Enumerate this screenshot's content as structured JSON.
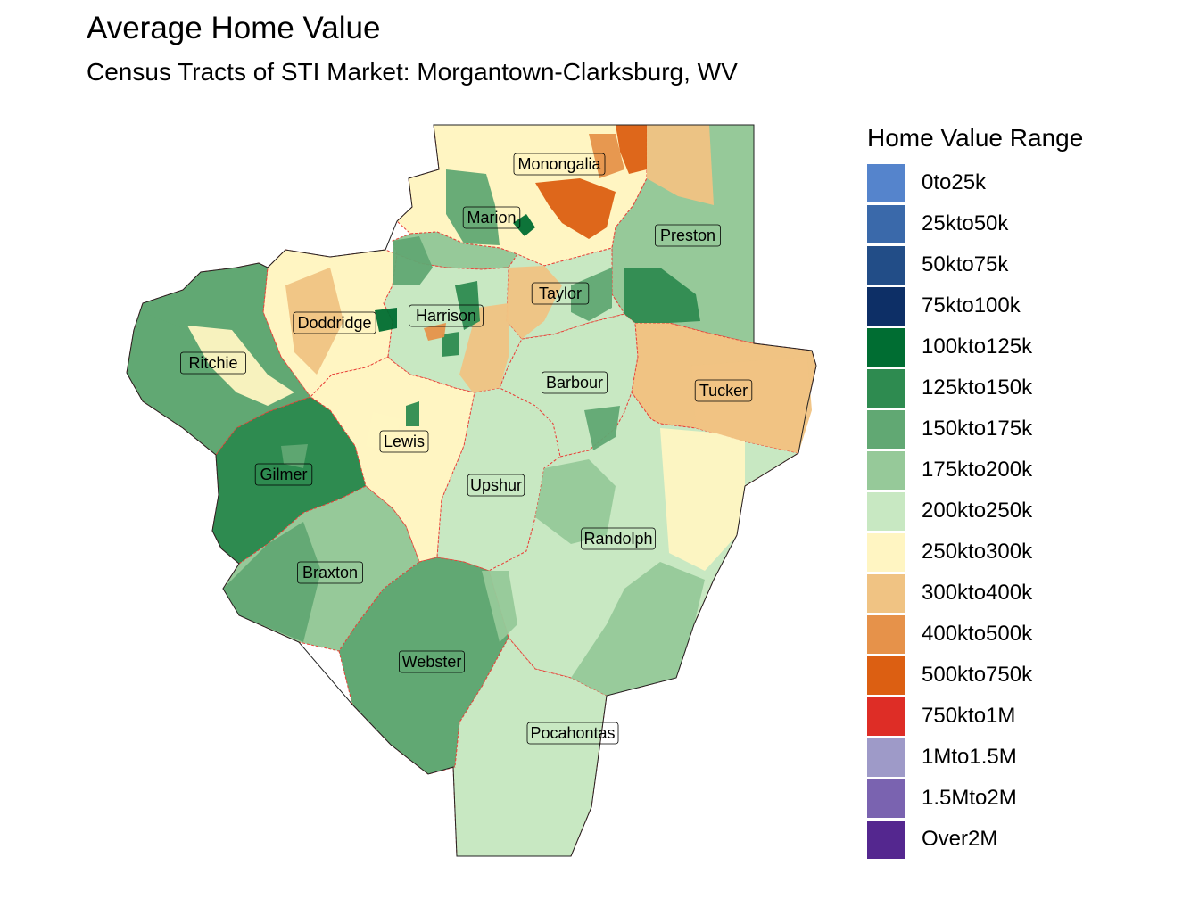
{
  "title": "Average Home Value",
  "subtitle": "Census Tracts of STI Market: Morgantown-Clarksburg, WV",
  "legend": {
    "title": "Home Value Range",
    "items": [
      {
        "label": "0to25k",
        "color": "#5584cc"
      },
      {
        "label": "25kto50k",
        "color": "#3a69aa"
      },
      {
        "label": "50kto75k",
        "color": "#224d87"
      },
      {
        "label": "75kto100k",
        "color": "#0d2f66"
      },
      {
        "label": "100kto125k",
        "color": "#006d32"
      },
      {
        "label": "125kto150k",
        "color": "#2e8b50"
      },
      {
        "label": "150kto175k",
        "color": "#61a873"
      },
      {
        "label": "175kto200k",
        "color": "#96c999"
      },
      {
        "label": "200kto250k",
        "color": "#c8e8c2"
      },
      {
        "label": "250kto300k",
        "color": "#fff5c2"
      },
      {
        "label": "300kto400k",
        "color": "#f0c383"
      },
      {
        "label": "400kto500k",
        "color": "#e6924a"
      },
      {
        "label": "500kto750k",
        "color": "#dc5f12"
      },
      {
        "label": "750kto1M",
        "color": "#de2d26"
      },
      {
        "label": "1Mto1.5M",
        "color": "#9e9ac8"
      },
      {
        "label": "1.5Mto2M",
        "color": "#7a63b0"
      },
      {
        "label": "Over2M",
        "color": "#54278f"
      }
    ]
  },
  "counties": [
    {
      "name": "Monongalia",
      "range": "250kto300k"
    },
    {
      "name": "Marion",
      "range": "175kto200k"
    },
    {
      "name": "Preston",
      "range": "175kto200k"
    },
    {
      "name": "Taylor",
      "range": "200kto250k"
    },
    {
      "name": "Doddridge",
      "range": "250kto300k"
    },
    {
      "name": "Harrison",
      "range": "200kto250k"
    },
    {
      "name": "Ritchie",
      "range": "150kto175k"
    },
    {
      "name": "Barbour",
      "range": "200kto250k"
    },
    {
      "name": "Tucker",
      "range": "300kto400k"
    },
    {
      "name": "Lewis",
      "range": "250kto300k"
    },
    {
      "name": "Gilmer",
      "range": "125kto150k"
    },
    {
      "name": "Upshur",
      "range": "200kto250k"
    },
    {
      "name": "Randolph",
      "range": "200kto250k"
    },
    {
      "name": "Braxton",
      "range": "175kto200k"
    },
    {
      "name": "Webster",
      "range": "150kto175k"
    },
    {
      "name": "Pocahontas",
      "range": "200kto250k"
    }
  ]
}
